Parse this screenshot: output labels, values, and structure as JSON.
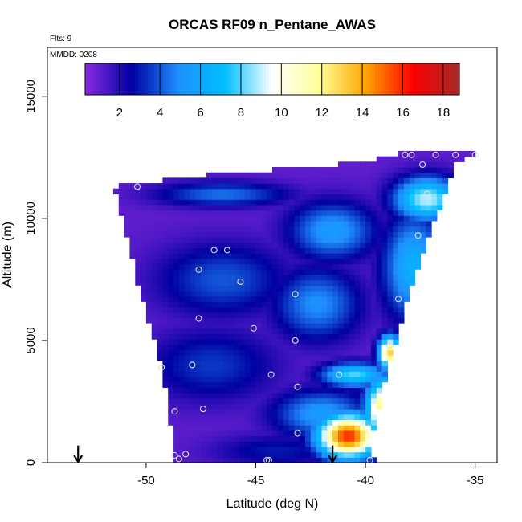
{
  "chart_data": {
    "type": "heatmap",
    "title": "ORCAS RF09 n_Pentane_AWAS",
    "note_flights": "Flts: 9",
    "note_date": "MMDD: 0208",
    "xlabel": "Latitude (deg N)",
    "ylabel": "Altitude (m)",
    "xlim": [
      -54.5,
      -34
    ],
    "ylim": [
      0,
      17000
    ],
    "x_ticks": [
      -50,
      -45,
      -40,
      -35
    ],
    "x_tick_labels": [
      "-50",
      "-45",
      "-40",
      "-35"
    ],
    "y_ticks": [
      0,
      5000,
      10000,
      15000
    ],
    "y_tick_labels": [
      "0",
      "5000",
      "10000",
      "15000"
    ],
    "colorbar": {
      "range": [
        0.3,
        18.8
      ],
      "ticks": [
        2,
        4,
        6,
        8,
        10,
        12,
        14,
        16,
        18
      ],
      "tick_labels": [
        "2",
        "4",
        "6",
        "8",
        "10",
        "12",
        "14",
        "16",
        "18"
      ],
      "colors": [
        "#8a2be2",
        "#0000a0",
        "#1e90ff",
        "#00bfff",
        "#ffffff",
        "#ffff99",
        "#ffa500",
        "#ff0000",
        "#a52a2a"
      ]
    },
    "boundary": {
      "left": [
        [
          0,
          -48.8
        ],
        [
          1000,
          -48.8
        ],
        [
          3000,
          -49.1
        ],
        [
          5000,
          -49.6
        ],
        [
          7000,
          -50.3
        ],
        [
          9000,
          -50.8
        ],
        [
          10500,
          -51.2
        ],
        [
          11300,
          -51.5
        ]
      ],
      "right": [
        [
          0,
          -39.6
        ],
        [
          1000,
          -39.7
        ],
        [
          3000,
          -39.2
        ],
        [
          5000,
          -38.6
        ],
        [
          7000,
          -38
        ],
        [
          9000,
          -37.2
        ],
        [
          11000,
          -36.4
        ],
        [
          12300,
          -35.9
        ],
        [
          12700,
          -35
        ]
      ],
      "top": [
        [
          -51.5,
          11300
        ],
        [
          -47,
          11800
        ],
        [
          -44,
          12000
        ],
        [
          -40,
          12300
        ],
        [
          -38.3,
          12700
        ],
        [
          -35,
          12700
        ]
      ]
    },
    "features": [
      {
        "lat": -40.8,
        "alt": 1100,
        "value": 16,
        "radius_lat": 1.4,
        "radius_alt": 900
      },
      {
        "lat": -39.2,
        "alt": 2200,
        "value": 12.5,
        "radius_lat": 0.8,
        "radius_alt": 1300
      },
      {
        "lat": -38.9,
        "alt": 4500,
        "value": 13,
        "radius_lat": 0.5,
        "radius_alt": 700
      },
      {
        "lat": -40.5,
        "alt": 3600,
        "value": 8,
        "radius_lat": 1.5,
        "radius_alt": 500
      },
      {
        "lat": -37.2,
        "alt": 10800,
        "value": 9,
        "radius_lat": 1.5,
        "radius_alt": 900
      },
      {
        "lat": -37.8,
        "alt": 8000,
        "value": 6.5,
        "radius_lat": 1.4,
        "radius_alt": 2200
      },
      {
        "lat": -41.5,
        "alt": 9500,
        "value": 5.5,
        "radius_lat": 2,
        "radius_alt": 1200
      },
      {
        "lat": -42.2,
        "alt": 6500,
        "value": 5,
        "radius_lat": 2,
        "radius_alt": 1500
      },
      {
        "lat": -42,
        "alt": 2000,
        "value": 5.5,
        "radius_lat": 2.2,
        "radius_alt": 1000
      },
      {
        "lat": -46.5,
        "alt": 11000,
        "value": 4.5,
        "radius_lat": 3,
        "radius_alt": 500
      },
      {
        "lat": -46.5,
        "alt": 7500,
        "value": 4,
        "radius_lat": 3,
        "radius_alt": 1500
      },
      {
        "lat": -47,
        "alt": 4000,
        "value": 3.5,
        "radius_lat": 3,
        "radius_alt": 1500
      },
      {
        "lat": -44,
        "alt": 500,
        "value": 3,
        "radius_lat": 3,
        "radius_alt": 700
      }
    ],
    "samples": [
      {
        "lat": -50.4,
        "alt": 11300
      },
      {
        "lat": -46.9,
        "alt": 8700
      },
      {
        "lat": -46.3,
        "alt": 8700
      },
      {
        "lat": -45.7,
        "alt": 7400
      },
      {
        "lat": -47.6,
        "alt": 7900
      },
      {
        "lat": -43.2,
        "alt": 6900
      },
      {
        "lat": -47.6,
        "alt": 5900
      },
      {
        "lat": -45.1,
        "alt": 5500
      },
      {
        "lat": -43.2,
        "alt": 5000
      },
      {
        "lat": -47.9,
        "alt": 4000
      },
      {
        "lat": -44.3,
        "alt": 3600
      },
      {
        "lat": -49.3,
        "alt": 3900
      },
      {
        "lat": -43.1,
        "alt": 3100
      },
      {
        "lat": -41.2,
        "alt": 3600
      },
      {
        "lat": -48.7,
        "alt": 2100
      },
      {
        "lat": -47.4,
        "alt": 2200
      },
      {
        "lat": -43.1,
        "alt": 1200
      },
      {
        "lat": -48.7,
        "alt": 300
      },
      {
        "lat": -48.5,
        "alt": 150
      },
      {
        "lat": -48.2,
        "alt": 350
      },
      {
        "lat": -44.5,
        "alt": 100
      },
      {
        "lat": -44.4,
        "alt": 100
      },
      {
        "lat": -39.8,
        "alt": 100
      },
      {
        "lat": -38.9,
        "alt": 4800
      },
      {
        "lat": -38.5,
        "alt": 6700
      },
      {
        "lat": -37.6,
        "alt": 9300
      },
      {
        "lat": -37.2,
        "alt": 11000
      },
      {
        "lat": -37.4,
        "alt": 12200
      },
      {
        "lat": -37.9,
        "alt": 12600
      },
      {
        "lat": -38.2,
        "alt": 12600
      },
      {
        "lat": -36.8,
        "alt": 12600
      },
      {
        "lat": -35.9,
        "alt": 12600
      },
      {
        "lat": -35,
        "alt": 12600
      }
    ],
    "arrows": [
      {
        "lat": -53.1
      },
      {
        "lat": -41.5
      }
    ]
  }
}
